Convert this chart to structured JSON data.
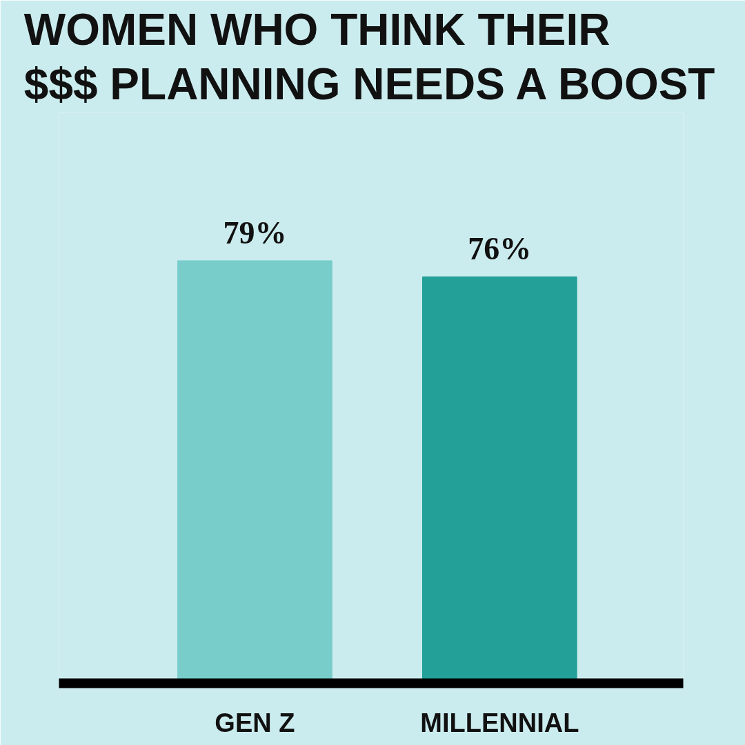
{
  "chart_data": {
    "type": "bar",
    "title": "WOMEN WHO THINK THEIR\n$$$ PLANNING NEEDS A BOOST",
    "categories": [
      "GEN Z",
      "MILLENNIAL"
    ],
    "values": [
      79,
      76
    ],
    "colors": [
      "#78cdcb",
      "#23a098"
    ],
    "value_labels": [
      "79%",
      "76%"
    ]
  }
}
